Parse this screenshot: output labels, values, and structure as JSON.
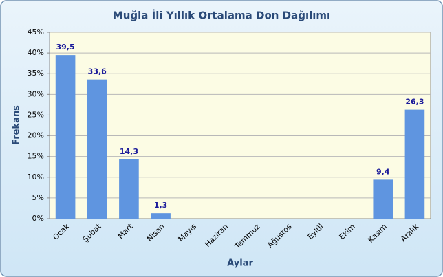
{
  "chart_data": {
    "type": "bar",
    "title": "Muğla İli Yıllık Ortalama Don Dağılımı",
    "x_label": "Aylar",
    "y_label": "Frekans",
    "categories": [
      "Ocak",
      "Şubat",
      "Mart",
      "Nisan",
      "Mayıs",
      "Haziran",
      "Temmuz",
      "Ağustos",
      "Eylül",
      "Ekim",
      "Kasım",
      "Aralık"
    ],
    "values": [
      39.5,
      33.6,
      14.3,
      1.3,
      null,
      null,
      null,
      null,
      null,
      null,
      9.4,
      26.3
    ],
    "value_labels": [
      "39,5",
      "33,6",
      "14,3",
      "1,3",
      null,
      null,
      null,
      null,
      null,
      null,
      "9,4",
      "26,3"
    ],
    "color": "#5f95e0",
    "ylim": [
      0,
      45
    ],
    "yticks": [
      {
        "value": 0,
        "label": "0%"
      },
      {
        "value": 5,
        "label": "5%"
      },
      {
        "value": 10,
        "label": "10%"
      },
      {
        "value": 15,
        "label": "15%"
      },
      {
        "value": 20,
        "label": "20%"
      },
      {
        "value": 25,
        "label": "25%"
      },
      {
        "value": 30,
        "label": "30%"
      },
      {
        "value": 35,
        "label": "35%"
      },
      {
        "value": 40,
        "label": "40%"
      },
      {
        "value": 45,
        "label": "45%"
      }
    ],
    "grid": true
  }
}
